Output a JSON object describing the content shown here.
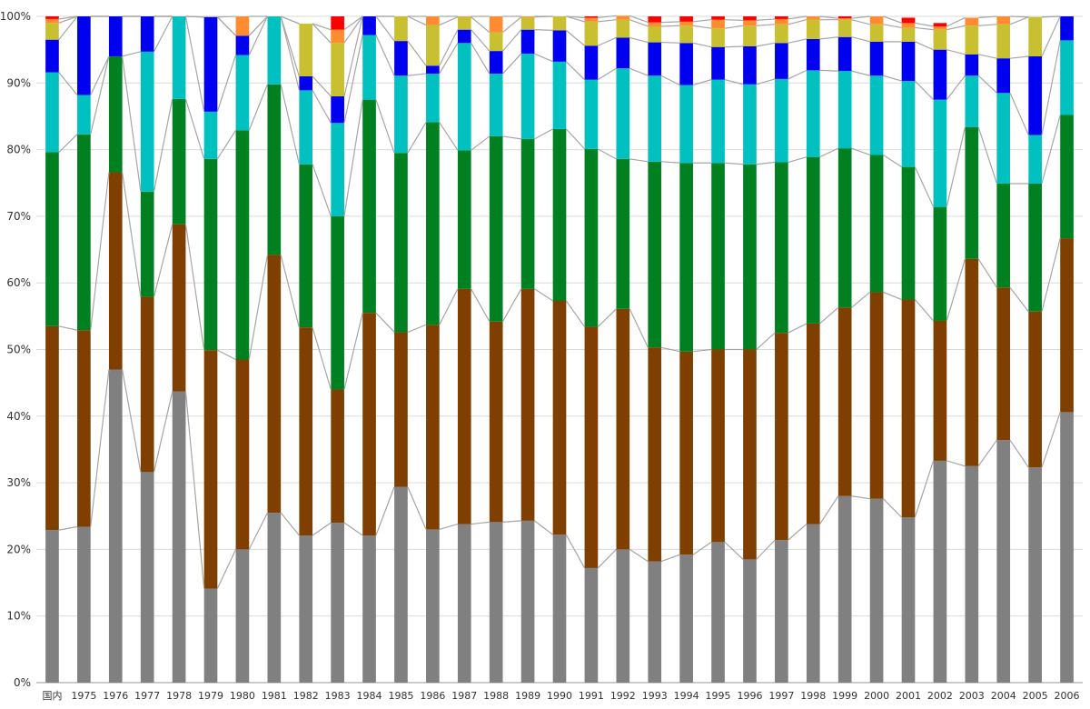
{
  "chart_data": {
    "type": "bar",
    "stacked": true,
    "percent": true,
    "title": "",
    "xlabel": "",
    "ylabel": "",
    "ylim": [
      0,
      100
    ],
    "yticks": [
      "0%",
      "10%",
      "20%",
      "30%",
      "40%",
      "50%",
      "60%",
      "70%",
      "80%",
      "90%",
      "100%"
    ],
    "grid": true,
    "legend": "none",
    "connector_lines": true,
    "categories": [
      "国内",
      "1975",
      "1976",
      "1977",
      "1978",
      "1979",
      "1980",
      "1981",
      "1982",
      "1983",
      "1984",
      "1985",
      "1986",
      "1987",
      "1988",
      "1989",
      "1990",
      "1991",
      "1992",
      "1993",
      "1994",
      "1995",
      "1996",
      "1997",
      "1998",
      "1999",
      "2000",
      "2001",
      "2002",
      "2003",
      "2004",
      "2005",
      "2006"
    ],
    "series": [
      {
        "color": "#808080",
        "values": [
          22.9,
          23.4,
          47.0,
          31.6,
          43.7,
          14.1,
          20.0,
          25.5,
          22.1,
          24.0,
          22.1,
          29.4,
          23.0,
          23.8,
          24.1,
          24.3,
          22.2,
          17.2,
          20.0,
          18.2,
          19.2,
          21.1,
          18.5,
          21.4,
          23.8,
          28.0,
          27.6,
          24.8,
          33.3,
          32.5,
          36.4,
          32.3,
          40.6
        ]
      },
      {
        "color": "#7f3f00",
        "values": [
          30.6,
          29.5,
          29.6,
          26.3,
          25.1,
          35.8,
          28.5,
          38.7,
          31.2,
          20.0,
          33.4,
          23.2,
          30.7,
          35.3,
          30.1,
          34.8,
          35.1,
          36.2,
          36.1,
          32.1,
          30.5,
          28.9,
          31.5,
          31.1,
          30.1,
          28.3,
          31.0,
          32.7,
          21.0,
          31.1,
          22.9,
          23.4,
          26.1
        ]
      },
      {
        "color": "#008020",
        "values": [
          26.1,
          29.4,
          17.4,
          15.8,
          18.8,
          28.7,
          34.4,
          25.6,
          24.5,
          26.0,
          32.0,
          26.9,
          30.4,
          20.8,
          27.8,
          22.5,
          25.8,
          26.7,
          22.5,
          27.9,
          28.3,
          28.0,
          27.8,
          25.6,
          25.0,
          23.9,
          20.6,
          19.9,
          17.1,
          19.8,
          15.6,
          19.2,
          18.5
        ]
      },
      {
        "color": "#00c0c0",
        "values": [
          12.0,
          5.9,
          0.0,
          21.0,
          12.4,
          7.1,
          11.3,
          10.2,
          11.1,
          14.0,
          9.7,
          11.6,
          7.3,
          16.1,
          9.4,
          12.8,
          10.1,
          10.4,
          13.6,
          12.9,
          11.7,
          12.5,
          12.0,
          12.5,
          13.0,
          11.6,
          11.9,
          12.9,
          16.1,
          7.7,
          13.6,
          7.3,
          11.2
        ]
      },
      {
        "color": "#0000f0",
        "values": [
          4.9,
          11.8,
          6.0,
          5.3,
          0.0,
          14.2,
          2.9,
          0.0,
          2.1,
          4.0,
          2.8,
          5.2,
          1.2,
          2.0,
          3.4,
          3.6,
          4.7,
          5.1,
          4.6,
          5.0,
          6.3,
          4.9,
          5.7,
          5.4,
          4.7,
          5.1,
          5.1,
          5.9,
          7.5,
          3.2,
          5.2,
          11.8,
          3.6
        ]
      },
      {
        "color": "#c8c030",
        "values": [
          2.5,
          0.0,
          0.0,
          0.0,
          0.0,
          0.0,
          0.0,
          0.0,
          7.9,
          8.0,
          0.0,
          3.7,
          6.1,
          1.9,
          2.8,
          1.9,
          2.1,
          3.6,
          2.7,
          2.4,
          2.6,
          2.8,
          3.1,
          2.8,
          2.9,
          2.6,
          2.6,
          2.1,
          3.0,
          4.3,
          5.1,
          5.9,
          0.0
        ]
      },
      {
        "color": "#ff8c30",
        "values": [
          0.6,
          0.0,
          0.0,
          0.0,
          0.0,
          0.0,
          2.9,
          0.0,
          0.0,
          2.0,
          0.0,
          0.0,
          1.3,
          0.1,
          2.4,
          0.1,
          0.0,
          0.6,
          0.6,
          0.6,
          0.6,
          1.3,
          0.8,
          0.8,
          0.5,
          0.2,
          1.2,
          0.7,
          0.5,
          1.2,
          1.2,
          0.0,
          0.0
        ]
      },
      {
        "color": "#ff0000",
        "values": [
          0.4,
          0.0,
          0.0,
          0.0,
          0.0,
          0.0,
          0.0,
          0.0,
          0.0,
          2.0,
          0.0,
          0.0,
          0.0,
          0.0,
          0.0,
          0.0,
          0.0,
          0.2,
          0.0,
          0.9,
          0.8,
          0.5,
          0.6,
          0.4,
          0.0,
          0.3,
          0.0,
          0.8,
          0.5,
          0.0,
          0.0,
          0.0,
          0.0
        ]
      }
    ]
  }
}
